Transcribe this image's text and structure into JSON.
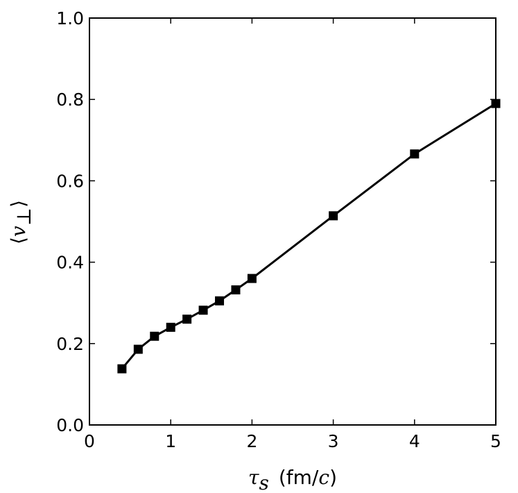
{
  "chart_data": {
    "type": "line",
    "xlabel_symbol": "τ",
    "xlabel_subscript": "s",
    "xlabel_units_open": "(fm/",
    "xlabel_units_c": "c",
    "xlabel_units_close": ")",
    "ylabel_symbol": "v",
    "ylabel_subscript": "⊥",
    "ylabel_open": "⟨",
    "ylabel_close": "⟩",
    "xlim": [
      0,
      5
    ],
    "ylim": [
      0.0,
      1.0
    ],
    "xticks": [
      0,
      1,
      2,
      3,
      4,
      5
    ],
    "xtick_labels": [
      "0",
      "1",
      "2",
      "3",
      "4",
      "5"
    ],
    "yticks": [
      0.0,
      0.2,
      0.4,
      0.6,
      0.8,
      1.0
    ],
    "ytick_labels": [
      "0.0",
      "0.2",
      "0.4",
      "0.6",
      "0.8",
      "1.0"
    ],
    "grid": false,
    "series": [
      {
        "marker": "square",
        "color": "#000000",
        "x": [
          0.4,
          0.6,
          0.8,
          1.0,
          1.2,
          1.4,
          1.6,
          1.8,
          2.0,
          3.0,
          4.0,
          5.0
        ],
        "y": [
          0.138,
          0.186,
          0.218,
          0.24,
          0.26,
          0.282,
          0.305,
          0.332,
          0.36,
          0.514,
          0.666,
          0.79
        ]
      }
    ]
  }
}
